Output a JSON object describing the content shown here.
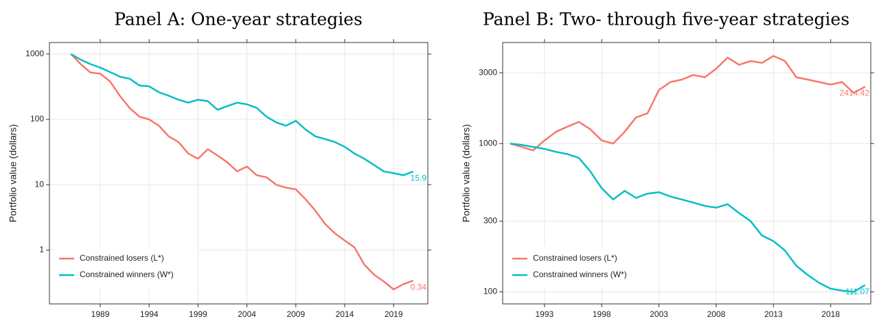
{
  "chart_data": [
    {
      "type": "line",
      "title": "Panel A: One-year strategies",
      "y_label": "Portfolio value (dollars)",
      "log_y": true,
      "grid": true,
      "legend_position": "lower left",
      "x": [
        1986,
        1987,
        1988,
        1989,
        1990,
        1991,
        1992,
        1993,
        1994,
        1995,
        1996,
        1997,
        1998,
        1999,
        2000,
        2001,
        2002,
        2003,
        2004,
        2005,
        2006,
        2007,
        2008,
        2009,
        2010,
        2011,
        2012,
        2013,
        2014,
        2015,
        2016,
        2017,
        2018,
        2019,
        2020,
        2021
      ],
      "xlim": [
        1983.8,
        2022.5
      ],
      "xticks": [
        1989,
        1994,
        1999,
        2004,
        2009,
        2014,
        2019
      ],
      "ylim": [
        0.15,
        1500
      ],
      "yticks": [
        1,
        10,
        100,
        1000
      ],
      "series": [
        {
          "name": "Constrained losers (L*)",
          "color": "#F8766D",
          "values": [
            1000,
            700,
            520,
            500,
            380,
            230,
            150,
            110,
            100,
            80,
            55,
            45,
            30,
            25,
            35,
            28,
            22,
            16,
            19,
            14,
            13,
            10,
            9,
            8.5,
            6,
            4,
            2.5,
            1.8,
            1.4,
            1.1,
            0.6,
            0.42,
            0.33,
            0.25,
            0.3,
            0.34
          ]
        },
        {
          "name": "Constrained winners (W*)",
          "color": "#00BFC4",
          "values": [
            1000,
            820,
            700,
            620,
            530,
            450,
            420,
            330,
            320,
            260,
            230,
            200,
            180,
            200,
            190,
            140,
            160,
            180,
            170,
            150,
            110,
            90,
            80,
            95,
            70,
            55,
            50,
            45,
            38,
            30,
            25,
            20,
            16,
            15,
            14,
            15.9
          ]
        }
      ]
    },
    {
      "type": "line",
      "title": "Panel B: Two- through five-year strategies",
      "y_label": "Portfolio value (dollars)",
      "log_y": true,
      "grid": true,
      "legend_position": "lower left",
      "x": [
        1990,
        1991,
        1992,
        1993,
        1994,
        1995,
        1996,
        1997,
        1998,
        1999,
        2000,
        2001,
        2002,
        2003,
        2004,
        2005,
        2006,
        2007,
        2008,
        2009,
        2010,
        2011,
        2012,
        2013,
        2014,
        2015,
        2016,
        2017,
        2018,
        2019,
        2020,
        2021
      ],
      "xlim": [
        1989.35,
        2021.5
      ],
      "xticks": [
        1993,
        1998,
        2003,
        2008,
        2013,
        2018
      ],
      "ylim": [
        83,
        4800
      ],
      "yticks": [
        100,
        300,
        1000,
        3000
      ],
      "series": [
        {
          "name": "Constrained losers (L*)",
          "color": "#F8766D",
          "values": [
            1000,
            950,
            900,
            1050,
            1200,
            1300,
            1400,
            1250,
            1050,
            1000,
            1200,
            1500,
            1600,
            2300,
            2600,
            2700,
            2900,
            2800,
            3200,
            3800,
            3400,
            3600,
            3500,
            3900,
            3600,
            2800,
            2700,
            2600,
            2500,
            2600,
            2200,
            2414.42
          ]
        },
        {
          "name": "Constrained winners (W*)",
          "color": "#00BFC4",
          "values": [
            1000,
            980,
            950,
            920,
            880,
            850,
            800,
            650,
            500,
            420,
            480,
            430,
            460,
            470,
            440,
            420,
            400,
            380,
            370,
            390,
            340,
            300,
            240,
            220,
            190,
            150,
            130,
            115,
            105,
            102,
            100,
            111.07
          ]
        }
      ]
    }
  ]
}
